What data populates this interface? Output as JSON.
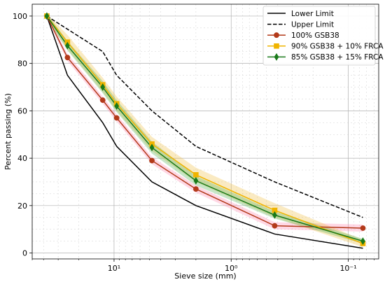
{
  "chart_data": {
    "type": "line",
    "title": "",
    "xlabel": "Sieve size (mm)",
    "ylabel": "Percent passing (%)",
    "x_scale": "log",
    "x_axis_reversed": true,
    "xlim": [
      50,
      0.055
    ],
    "ylim": [
      -2.5,
      105
    ],
    "grid": true,
    "legend_position": "top-right",
    "x_tick_labels": [
      {
        "value": 10,
        "label": "10¹"
      },
      {
        "value": 1,
        "label": "10⁰"
      },
      {
        "value": 0.1,
        "label": "10⁻¹"
      }
    ],
    "y_ticks": [
      0,
      20,
      40,
      60,
      80,
      100
    ],
    "series": [
      {
        "name": "Lower Limit",
        "color": "#000000",
        "dash": "solid",
        "marker": "none",
        "x": [
          37.5,
          25,
          12.5,
          9.5,
          4.75,
          2,
          0.425,
          0.075
        ],
        "y": [
          100,
          75,
          55,
          45,
          30,
          20,
          8,
          2
        ]
      },
      {
        "name": "Upper Limit",
        "color": "#000000",
        "dash": "dashed",
        "marker": "none",
        "x": [
          37.5,
          12.5,
          9.5,
          4.75,
          2,
          0.425,
          0.075
        ],
        "y": [
          100,
          85,
          75,
          60,
          45,
          30,
          15
        ]
      },
      {
        "name": "100% GSB38",
        "color": "#b33a1a",
        "band_color": "#ff8fb5",
        "marker": "circle",
        "x": [
          37.5,
          25,
          12.5,
          9.5,
          4.75,
          2,
          0.425,
          0.075
        ],
        "y": [
          100,
          82.5,
          64.5,
          57,
          39,
          27,
          11.5,
          10.5
        ],
        "band": [
          1,
          1.5,
          1.5,
          1.5,
          1.5,
          1.5,
          1.5,
          1.5
        ]
      },
      {
        "name": "90% GSB38 + 10% FRCA",
        "color": "#f0b400",
        "band_color": "#f2c34f",
        "marker": "square",
        "x": [
          37.5,
          25,
          12.5,
          9.5,
          4.75,
          2,
          0.425,
          0.075
        ],
        "y": [
          100,
          89,
          71,
          63,
          46,
          33,
          18,
          4
        ],
        "band": [
          1,
          3,
          3,
          3,
          3,
          3,
          3,
          1.5
        ]
      },
      {
        "name": "85% GSB38 + 15% FRCA",
        "color": "#1a7a1a",
        "band_color": "#5fb85f",
        "marker": "diamond",
        "x": [
          37.5,
          25,
          12.5,
          9.5,
          4.75,
          2,
          0.425,
          0.075
        ],
        "y": [
          100,
          87.5,
          70,
          62,
          44.5,
          30.5,
          16,
          5
        ],
        "band": [
          1,
          2,
          2.5,
          2.5,
          2.5,
          2,
          1.5,
          1
        ]
      }
    ]
  }
}
